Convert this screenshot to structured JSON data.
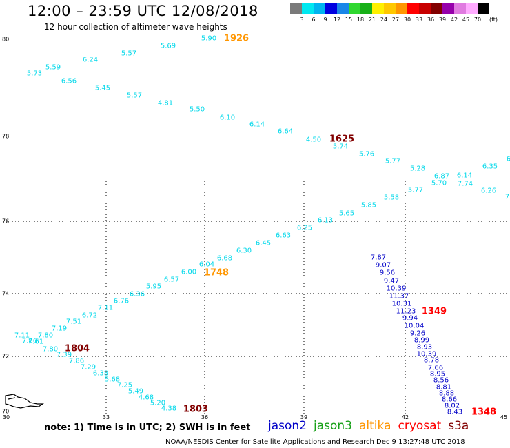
{
  "title": "12:00 – 23:59 UTC 12/08/2018",
  "subtitle": "12 hour collection of altimeter wave heights",
  "legend": {
    "unit": "(ft)",
    "colors": [
      "#7a7a7a",
      "#00e8f0",
      "#00b4f0",
      "#0000e0",
      "#1a86e8",
      "#30d830",
      "#18b018",
      "#fff000",
      "#ffc800",
      "#ff9600",
      "#ff0000",
      "#c80000",
      "#820000",
      "#9600aa",
      "#e07ae0",
      "#ffaaff",
      "#000000"
    ],
    "labels": [
      "3",
      "6",
      "9",
      "12",
      "15",
      "18",
      "21",
      "24",
      "27",
      "30",
      "33",
      "36",
      "39",
      "42",
      "45",
      "70"
    ]
  },
  "map": {
    "lat_labels": [
      "80",
      "78",
      "76",
      "74",
      "72",
      "70"
    ],
    "lon_labels": [
      "30",
      "33",
      "36",
      "39",
      "42",
      "45"
    ]
  },
  "tracks": {
    "altika_upper": [
      "5.90",
      "5.69",
      "5.57",
      "6.24",
      "5.59",
      "5.73",
      "6.56",
      "5.45",
      "5.57",
      "4.81",
      "5.50",
      "6.10",
      "6.14",
      "6.64",
      "4.50",
      "5.74",
      "5.76",
      "5.77",
      "5.28",
      "6.87",
      "6.14",
      "6.35",
      "6",
      "5.70",
      "7.74",
      "5.77",
      "6.26",
      "7"
    ],
    "altika_lower": [
      "5.58",
      "5.85",
      "5.65",
      "6.13",
      "6.25",
      "6.63",
      "6.45",
      "6.30",
      "6.68",
      "6.04",
      "6.00",
      "6.57",
      "5.95",
      "6.36",
      "6.76",
      "7.11",
      "6.72",
      "7.51",
      "7.19",
      "7.80",
      "7.11",
      "7.61",
      "7.86",
      "7.80",
      "7.39"
    ],
    "s3a": [
      "7.86",
      "7.29",
      "6.38",
      "5.68",
      "7.25",
      "5.49",
      "4.68",
      "5.20",
      "4.38"
    ],
    "jason2": [
      "7.87",
      "9.07",
      "9.56",
      "9.47",
      "10.39",
      "11.37",
      "10.31",
      "11.23",
      "9.94",
      "10.04",
      "9.26",
      "8.99",
      "8.93",
      "10.39",
      "8.78",
      "7.66",
      "8.95",
      "8.56",
      "8.81",
      "8.88",
      "8.66",
      "8.02",
      "8.43"
    ]
  },
  "times": {
    "t1926": "1926",
    "t1625": "1625",
    "t1748": "1748",
    "t1804": "1804",
    "t1349": "1349",
    "t1803": "1803",
    "t1348": "1348"
  },
  "time_colors": {
    "altika": "#ff9600",
    "cryosat": "#820000",
    "jason2": "#ff0000"
  },
  "note": "note:  1) Time is in UTC;  2) SWH is in feet",
  "satellites": [
    {
      "name": "jason2",
      "color": "#0000c8"
    },
    {
      "name": "jason3",
      "color": "#18a018"
    },
    {
      "name": "altika",
      "color": "#ff9600"
    },
    {
      "name": "cryosat",
      "color": "#ff0000"
    },
    {
      "name": "s3a",
      "color": "#820000"
    }
  ],
  "credit": "NOAA/NESDIS Center for Satellite Applications and Research    Dec  9 13:27:48 UTC 2018"
}
